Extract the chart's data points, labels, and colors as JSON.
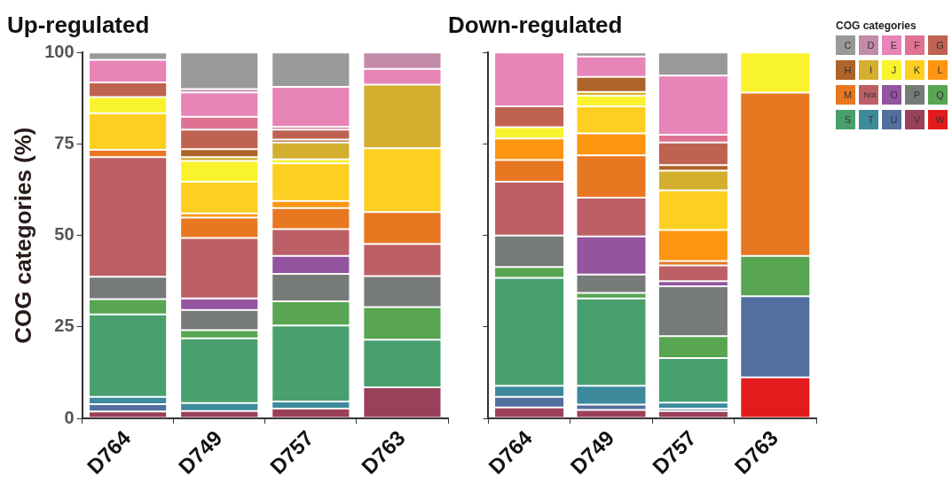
{
  "chart_data": [
    {
      "type": "bar",
      "title": "Up-regulated",
      "ylabel": "COG categories (%)",
      "stacked": true,
      "grid": false,
      "legend": false,
      "categories": [
        "D764",
        "D749",
        "D757",
        "D763"
      ],
      "ylim": [
        0,
        100
      ],
      "yticks": [
        0,
        25,
        50,
        75,
        100
      ],
      "series": [
        {
          "color": "#e41b1c",
          "values": [
            null,
            null,
            null,
            null
          ]
        },
        {
          "color": "#9a405a",
          "values": [
            1.9,
            2.0,
            2.7,
            8.5
          ]
        },
        {
          "color": "#536fa0",
          "values": [
            2.0,
            null,
            null,
            null
          ]
        },
        {
          "color": "#3c8a9c",
          "values": [
            2.0,
            2.2,
            1.9,
            null
          ]
        },
        {
          "color": "#49a06f",
          "values": [
            22.5,
            17.7,
            20.8,
            13.0
          ]
        },
        {
          "color": "#58a552",
          "values": [
            4.2,
            2.2,
            6.6,
            8.9
          ]
        },
        {
          "color": "#777b78",
          "values": [
            6.1,
            5.5,
            7.5,
            8.5
          ]
        },
        {
          "color": "#9354a0",
          "values": [
            null,
            3.2,
            4.9,
            null
          ]
        },
        {
          "color": "#bd5f66",
          "values": [
            32.7,
            16.5,
            7.3,
            8.8
          ]
        },
        {
          "color": "#e87722",
          "values": [
            2.0,
            5.6,
            5.8,
            8.7
          ]
        },
        {
          "color": "#fe9510",
          "values": [
            null,
            1.1,
            1.9,
            null
          ]
        },
        {
          "color": "#fecf20",
          "values": [
            10.0,
            8.7,
            10.3,
            17.4
          ]
        },
        {
          "color": "#f9f32e",
          "values": [
            4.4,
            5.7,
            1.1,
            null
          ]
        },
        {
          "color": "#d4af2f",
          "values": [
            null,
            1.0,
            4.6,
            17.4
          ]
        },
        {
          "color": "#ae6428",
          "values": [
            null,
            2.2,
            0.8,
            null
          ]
        },
        {
          "color": "#bf6252",
          "values": [
            4.0,
            5.3,
            2.7,
            null
          ]
        },
        {
          "color": "#df7293",
          "values": [
            null,
            3.5,
            0.8,
            null
          ]
        },
        {
          "color": "#e784b8",
          "values": [
            6.2,
            6.7,
            10.9,
            4.3
          ]
        },
        {
          "color": "#c28ba8",
          "values": [
            null,
            0.9,
            null,
            4.5
          ]
        },
        {
          "color": "#999999",
          "values": [
            2.0,
            10.0,
            9.4,
            null
          ]
        }
      ]
    },
    {
      "type": "bar",
      "title": "Down-regulated",
      "stacked": true,
      "grid": false,
      "legend": "right",
      "legend_title": "COG categories",
      "tick_labels": "x",
      "categories": [
        "D764",
        "D749",
        "D757",
        "D763"
      ],
      "ylim": [
        0,
        100
      ],
      "yticks": [
        0,
        25,
        50,
        75,
        100
      ],
      "series": [
        {
          "name": "W",
          "color": "#e41b1c",
          "values": [
            null,
            null,
            null,
            11.2
          ]
        },
        {
          "name": "V",
          "color": "#9a405a",
          "values": [
            3.0,
            2.3,
            2.0,
            null
          ]
        },
        {
          "name": "U",
          "color": "#536fa0",
          "values": [
            2.9,
            1.5,
            0.7,
            22.2
          ]
        },
        {
          "name": "T",
          "color": "#3c8a9c",
          "values": [
            3.0,
            5.1,
            1.6,
            null
          ]
        },
        {
          "name": "S",
          "color": "#49a06f",
          "values": [
            29.5,
            23.9,
            12.2,
            null
          ]
        },
        {
          "name": "Q",
          "color": "#58a552",
          "values": [
            3.0,
            1.5,
            6.0,
            11.0
          ]
        },
        {
          "name": "P",
          "color": "#777b78",
          "values": [
            8.6,
            5.0,
            13.6,
            null
          ]
        },
        {
          "name": "O",
          "color": "#9354a0",
          "values": [
            null,
            10.4,
            1.4,
            null
          ]
        },
        {
          "name": "Not",
          "color": "#bd5f66",
          "values": [
            14.7,
            10.6,
            4.3,
            null
          ]
        },
        {
          "name": "M",
          "color": "#e87722",
          "values": [
            5.9,
            11.6,
            1.2,
            44.6
          ]
        },
        {
          "name": "L",
          "color": "#fe9510",
          "values": [
            5.9,
            6.0,
            8.5,
            null
          ]
        },
        {
          "name": "K",
          "color": "#fecf20",
          "values": [
            null,
            7.4,
            10.8,
            null
          ]
        },
        {
          "name": "J",
          "color": "#f9f32e",
          "values": [
            3.1,
            2.9,
            null,
            11.0
          ]
        },
        {
          "name": "I",
          "color": "#d4af2f",
          "values": [
            null,
            1.0,
            5.4,
            null
          ]
        },
        {
          "name": "H",
          "color": "#ae6428",
          "values": [
            null,
            4.1,
            1.5,
            null
          ]
        },
        {
          "name": "G",
          "color": "#bf6252",
          "values": [
            5.7,
            null,
            6.2,
            null
          ]
        },
        {
          "name": "F",
          "color": "#df7293",
          "values": [
            null,
            null,
            2.1,
            null
          ]
        },
        {
          "name": "E",
          "color": "#e784b8",
          "values": [
            14.7,
            5.6,
            16.2,
            null
          ]
        },
        {
          "name": "D",
          "color": "#c28ba8",
          "values": [
            null,
            null,
            null,
            null
          ]
        },
        {
          "name": "C",
          "color": "#999999",
          "values": [
            null,
            1.1,
            6.3,
            null
          ]
        }
      ]
    }
  ]
}
